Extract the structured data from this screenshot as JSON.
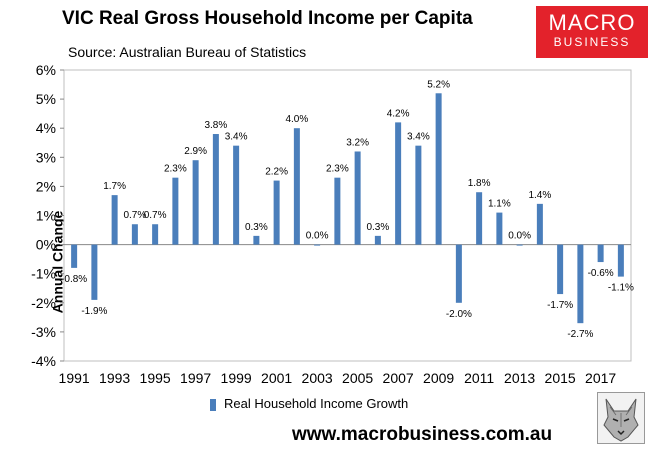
{
  "title": "VIC Real Gross Household Income per Capita",
  "subtitle": "Source: Australian Bureau of Statistics",
  "logo": {
    "line1": "MACRO",
    "line2": "BUSINESS"
  },
  "website": "www.macrobusiness.com.au",
  "colors": {
    "bar": "#4a7ebb",
    "logo_bg": "#e3222b",
    "plot_bg": "#ffffff",
    "grid": "#d9d9d9"
  },
  "icons": [
    "wolf-logo-icon"
  ],
  "chart_data": {
    "type": "bar",
    "ylabel": "Annual Change",
    "xlabel": "",
    "ylim": [
      -4,
      6
    ],
    "y_ticks": [
      "-4%",
      "-3%",
      "-2%",
      "-1%",
      "0%",
      "1%",
      "2%",
      "3%",
      "4%",
      "5%",
      "6%"
    ],
    "x": [
      1991,
      1992,
      1993,
      1994,
      1995,
      1996,
      1997,
      1998,
      1999,
      2000,
      2001,
      2002,
      2003,
      2004,
      2005,
      2006,
      2007,
      2008,
      2009,
      2010,
      2011,
      2012,
      2013,
      2014,
      2015,
      2016,
      2017,
      2018
    ],
    "x_tick_labels": [
      "1991",
      "1993",
      "1995",
      "1997",
      "1999",
      "2001",
      "2003",
      "2005",
      "2007",
      "2009",
      "2011",
      "2013",
      "2015",
      "2017"
    ],
    "series": [
      {
        "name": "Real Household Income Growth",
        "values": [
          -0.8,
          -1.9,
          1.7,
          0.7,
          0.7,
          2.3,
          2.9,
          3.8,
          3.4,
          0.3,
          2.2,
          4.0,
          0.0,
          2.3,
          3.2,
          0.3,
          4.2,
          3.4,
          5.2,
          -2.0,
          1.8,
          1.1,
          0.0,
          1.4,
          -1.7,
          -2.7,
          -0.6,
          -1.1
        ],
        "labels": [
          "-0.8%",
          "-1.9%",
          "1.7%",
          "0.7%",
          "0.7%",
          "2.3%",
          "2.9%",
          "3.8%",
          "3.4%",
          "0.3%",
          "2.2%",
          "4.0%",
          "0.0%",
          "2.3%",
          "3.2%",
          "0.3%",
          "4.2%",
          "3.4%",
          "5.2%",
          "-2.0%",
          "1.8%",
          "1.1%",
          "0.0%",
          "1.4%",
          "-1.7%",
          "-2.7%",
          "-0.6%",
          "-1.1%"
        ]
      }
    ],
    "legend": "bottom",
    "grid": false
  }
}
